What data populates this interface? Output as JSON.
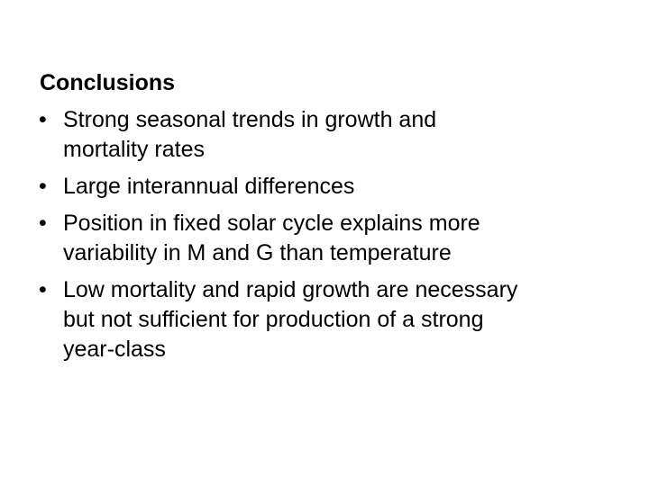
{
  "slide": {
    "title": "Conclusions",
    "bullet_glyph": "•",
    "bullets": [
      "Strong seasonal trends in growth and mortality rates",
      "Large interannual differences",
      "Position in fixed solar cycle explains more variability in M and G than temperature",
      "Low mortality and rapid growth are necessary but not sufficient for production of a strong year-class"
    ]
  }
}
